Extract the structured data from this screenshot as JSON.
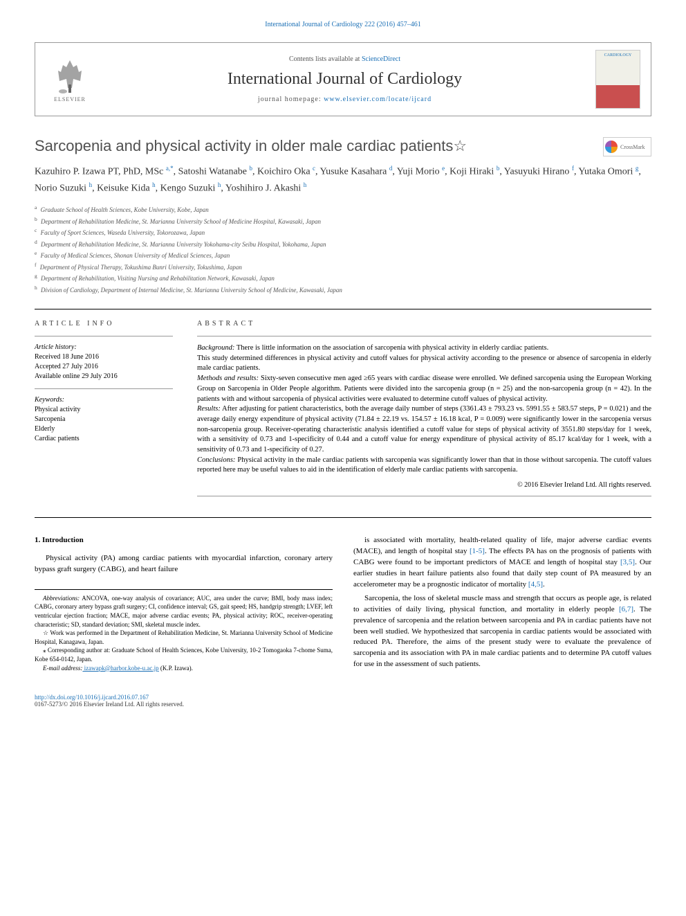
{
  "top_link": "International Journal of Cardiology 222 (2016) 457–461",
  "header": {
    "contents_prefix": "Contents lists available at ",
    "contents_link": "ScienceDirect",
    "journal_name": "International Journal of Cardiology",
    "homepage_prefix": "journal homepage: ",
    "homepage_url": "www.elsevier.com/locate/ijcard",
    "publisher": "ELSEVIER",
    "cover_text": "CARDIOLOGY"
  },
  "title": "Sarcopenia and physical activity in older male cardiac patients☆",
  "crossmark_label": "CrossMark",
  "authors_html": "Kazuhiro P. Izawa PT, PhD, MSc <sup>a,*</sup>, Satoshi Watanabe <sup>b</sup>, Koichiro Oka <sup>c</sup>, Yusuke Kasahara <sup>d</sup>, Yuji Morio <sup>e</sup>, Koji Hiraki <sup>b</sup>, Yasuyuki Hirano <sup>f</sup>, Yutaka Omori <sup>g</sup>, Norio Suzuki <sup>h</sup>, Keisuke Kida <sup>h</sup>, Kengo Suzuki <sup>h</sup>, Yoshihiro J. Akashi <sup>h</sup>",
  "affiliations": [
    {
      "sup": "a",
      "text": "Graduate School of Health Sciences, Kobe University, Kobe, Japan"
    },
    {
      "sup": "b",
      "text": "Department of Rehabilitation Medicine, St. Marianna University School of Medicine Hospital, Kawasaki, Japan"
    },
    {
      "sup": "c",
      "text": "Faculty of Sport Sciences, Waseda University, Tokorozawa, Japan"
    },
    {
      "sup": "d",
      "text": "Department of Rehabilitation Medicine, St. Marianna University Yokohama-city Seibu Hospital, Yokohama, Japan"
    },
    {
      "sup": "e",
      "text": "Faculty of Medical Sciences, Shonan University of Medical Sciences, Japan"
    },
    {
      "sup": "f",
      "text": "Department of Physical Therapy, Tokushima Bunri University, Tokushima, Japan"
    },
    {
      "sup": "g",
      "text": "Department of Rehabilitation, Visiting Nursing and Rehabilitation Network, Kawasaki, Japan"
    },
    {
      "sup": "h",
      "text": "Division of Cardiology, Department of Internal Medicine, St. Marianna University School of Medicine, Kawasaki, Japan"
    }
  ],
  "article_info": {
    "head": "ARTICLE INFO",
    "history_label": "Article history:",
    "history": [
      "Received 18 June 2016",
      "Accepted 27 July 2016",
      "Available online 29 July 2016"
    ],
    "keywords_label": "Keywords:",
    "keywords": [
      "Physical activity",
      "Sarcopenia",
      "Elderly",
      "Cardiac patients"
    ]
  },
  "abstract": {
    "head": "ABSTRACT",
    "segments": [
      {
        "label": "Background:",
        "text": " There is little information on the association of sarcopenia with physical activity in elderly cardiac patients."
      },
      {
        "label": "",
        "text": "This study determined differences in physical activity and cutoff values for physical activity according to the presence or absence of sarcopenia in elderly male cardiac patients."
      },
      {
        "label": "Methods and results:",
        "text": " Sixty-seven consecutive men aged ≥65 years with cardiac disease were enrolled. We defined sarcopenia using the European Working Group on Sarcopenia in Older People algorithm. Patients were divided into the sarcopenia group (n = 25) and the non-sarcopenia group (n = 42). In the patients with and without sarcopenia of physical activities were evaluated to determine cutoff values of physical activity."
      },
      {
        "label": "Results:",
        "text": " After adjusting for patient characteristics, both the average daily number of steps (3361.43 ± 793.23 vs. 5991.55 ± 583.57 steps, P = 0.021) and the average daily energy expenditure of physical activity (71.84 ± 22.19 vs. 154.57 ± 16.18 kcal, P = 0.009) were significantly lower in the sarcopenia versus non-sarcopenia group. Receiver-operating characteristic analysis identified a cutoff value for steps of physical activity of 3551.80 steps/day for 1 week, with a sensitivity of 0.73 and 1-specificity of 0.44 and a cutoff value for energy expenditure of physical activity of 85.17 kcal/day for 1 week, with a sensitivity of 0.73 and 1-specificity of 0.27."
      },
      {
        "label": "Conclusions:",
        "text": " Physical activity in the male cardiac patients with sarcopenia was significantly lower than that in those without sarcopenia. The cutoff values reported here may be useful values to aid in the identification of elderly male cardiac patients with sarcopenia."
      }
    ],
    "copyright": "© 2016 Elsevier Ireland Ltd. All rights reserved."
  },
  "body": {
    "heading": "1. Introduction",
    "left_paras": [
      "Physical activity (PA) among cardiac patients with myocardial infarction, coronary artery bypass graft surgery (CABG), and heart failure"
    ],
    "right_paras": [
      "is associated with mortality, health-related quality of life, major adverse cardiac events (MACE), and length of hospital stay <span class=\"ref-link\">[1-5]</span>. The effects PA has on the prognosis of patients with CABG were found to be important predictors of MACE and length of hospital stay <span class=\"ref-link\">[3,5]</span>. Our earlier studies in heart failure patients also found that daily step count of PA measured by an accelerometer may be a prognostic indicator of mortality <span class=\"ref-link\">[4,5]</span>.",
      "Sarcopenia, the loss of skeletal muscle mass and strength that occurs as people age, is related to activities of daily living, physical function, and mortality in elderly people <span class=\"ref-link\">[6,7]</span>. The prevalence of sarcopenia and the relation between sarcopenia and PA in cardiac patients have not been well studied. We hypothesized that sarcopenia in cardiac patients would be associated with reduced PA. Therefore, the aims of the present study were to evaluate the prevalence of sarcopenia and its association with PA in male cardiac patients and to determine PA cutoff values for use in the assessment of such patients."
    ]
  },
  "footnotes": {
    "abbrev_label": "Abbreviations:",
    "abbrev": " ANCOVA, one-way analysis of covariance; AUC, area under the curve; BMI, body mass index; CABG, coronary artery bypass graft surgery; CI, confidence interval; GS, gait speed; HS, handgrip strength; LVEF, left ventricular ejection fraction; MACE, major adverse cardiac events; PA, physical activity; ROC, receiver-operating characteristic; SD, standard deviation; SMI, skeletal muscle index.",
    "star": "☆ Work was performed in the Department of Rehabilitation Medicine, St. Marianna University School of Medicine Hospital, Kanagawa, Japan.",
    "corr": "⁎ Corresponding author at: Graduate School of Health Sciences, Kobe University, 10-2 Tomogaoka 7-chome Suma, Kobe 654-0142, Japan.",
    "email_label": "E-mail address:",
    "email": " izawapk@harbor.kobe-u.ac.jp",
    "email_suffix": " (K.P. Izawa)."
  },
  "footer": {
    "doi": "http://dx.doi.org/10.1016/j.ijcard.2016.07.167",
    "issn_copy": "0167-5273/© 2016 Elsevier Ireland Ltd. All rights reserved."
  },
  "colors": {
    "link": "#1a6fb5",
    "text": "#000000",
    "heading_gray": "#505050",
    "border": "#999999"
  }
}
